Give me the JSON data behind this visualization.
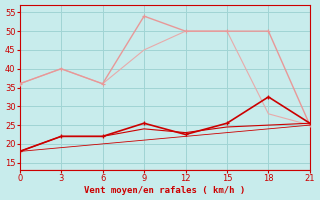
{
  "xlabel": "Vent moyen/en rafales ( km/h )",
  "background_color": "#c8ecec",
  "grid_color": "#a0d4d4",
  "x_ticks": [
    0,
    3,
    6,
    9,
    12,
    15,
    18,
    21
  ],
  "ylim": [
    13,
    57
  ],
  "xlim": [
    0,
    21
  ],
  "y_ticks": [
    15,
    20,
    25,
    30,
    35,
    40,
    45,
    50,
    55
  ],
  "pink_marked": {
    "x": [
      0,
      3,
      6,
      9,
      12,
      15,
      18,
      21
    ],
    "y": [
      36,
      40,
      36,
      54,
      50,
      50,
      50,
      25
    ],
    "color": "#e89898",
    "lw": 1.0,
    "markersize": 2.5
  },
  "pink_plain": {
    "x": [
      0,
      3,
      6,
      9,
      12,
      15,
      18,
      21
    ],
    "y": [
      36,
      40,
      36,
      45,
      50,
      50,
      28,
      25
    ],
    "color": "#e8aaaa",
    "lw": 0.8
  },
  "red_marked": {
    "x": [
      0,
      3,
      6,
      9,
      12,
      15,
      18,
      21
    ],
    "y": [
      18,
      22,
      22,
      25.5,
      22.5,
      25.5,
      32.5,
      25.5
    ],
    "color": "#cc0000",
    "lw": 1.2,
    "markersize": 2.5
  },
  "red_plain1": {
    "x": [
      0,
      3,
      6,
      9,
      12,
      15,
      18,
      21
    ],
    "y": [
      18,
      22,
      22,
      24,
      23,
      24.5,
      25,
      25.5
    ],
    "color": "#cc0000",
    "lw": 0.8
  },
  "red_plain2": {
    "x": [
      0,
      3,
      6,
      9,
      12,
      15,
      18,
      21
    ],
    "y": [
      18,
      19,
      20,
      21,
      22,
      23,
      24,
      25
    ],
    "color": "#cc0000",
    "lw": 0.6
  }
}
